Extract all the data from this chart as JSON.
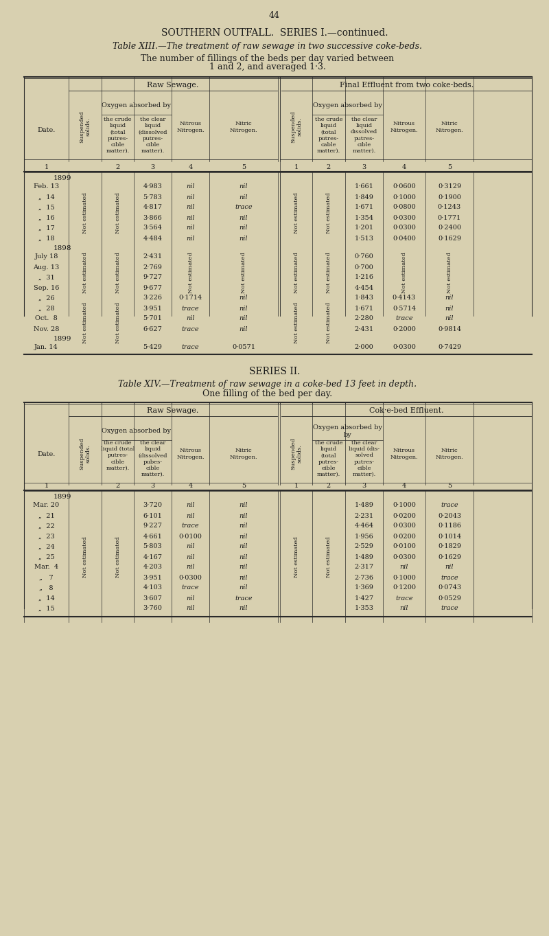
{
  "page_number": "44",
  "title1": "SOUTHERN OUTFALL.  SERIES I.—continued.",
  "table13_caption": "Table XIII.—The treatment of raw sewage in two successive coke-beds.",
  "table13_subtitle": "The number of fillings of the beds per day varied between\n1 and 2, and averaged 1·3.",
  "table13_left_header": "Raw Sewage.",
  "table13_right_header": "Final Effluent from two coke-beds.",
  "table13_col_headers": [
    "Date.",
    "Suspended solids.",
    "Oxygen absorbed by",
    "the crude liquid (total putres-\ncible matter).",
    "the clear liquid (dissolved putres-\ncible matter).",
    "Nitrous Nitrogen.",
    "Nitric Nitrogen.",
    "Suspended solids.",
    "Oxygen absorbed by",
    "the crude liquid (total putres-\ncable matter).",
    "the clear liquid dissolved putres-\ncible matter).",
    "Nitrous Nitrogen.",
    "Nitric Nitrogen."
  ],
  "table13_col_nums": [
    "",
    "1",
    "2",
    "3",
    "4",
    "5",
    "1",
    "2",
    "3",
    "4",
    "5"
  ],
  "table13_data": [
    [
      "1899",
      "",
      "",
      "",
      "",
      "",
      "",
      "",
      "",
      "",
      ""
    ],
    [
      "Feb. 13",
      "NE",
      "NE",
      "4·983",
      "nil",
      "nil",
      "NE",
      "NE",
      "1·661",
      "0·0600",
      "0·3129"
    ],
    [
      "„  14",
      "NE",
      "NE",
      "5·783",
      "nil",
      "nil",
      "NE",
      "NE",
      "1·849",
      "0·1000",
      "0·1900"
    ],
    [
      "„  15",
      "NE",
      "NE",
      "4·817",
      "nil",
      "trace",
      "NE",
      "NE",
      "1·671",
      "0·0800",
      "0·1243"
    ],
    [
      "„  16",
      "NE",
      "NE",
      "3·866",
      "nil",
      "nil",
      "NE",
      "NE",
      "1·354",
      "0·0300",
      "0·1771"
    ],
    [
      "„  17",
      "NE",
      "NE",
      "3·564",
      "nil",
      "nil",
      "NE",
      "NE",
      "1·201",
      "0·0300",
      "0·2400"
    ],
    [
      "„  18",
      "NE",
      "NE",
      "4·484",
      "nil",
      "nil",
      "NE",
      "NE",
      "1·513",
      "0·0400",
      "0·1629"
    ],
    [
      "1898",
      "",
      "",
      "",
      "",
      "",
      "",
      "",
      "",
      "",
      ""
    ],
    [
      "July 18",
      "NE",
      "NE",
      "2·431",
      "NE",
      "NE",
      "NE",
      "NE",
      "0·760",
      "NE",
      "NE"
    ],
    [
      "Aug. 13",
      "NE",
      "NE",
      "2·769",
      "NE",
      "NE",
      "NE",
      "NE",
      "0·700",
      "NE",
      "NE"
    ],
    [
      "„  31",
      "NE",
      "NE",
      "9·727",
      "NE",
      "NE",
      "NE",
      "NE",
      "1·216",
      "NE",
      "NE"
    ],
    [
      "Sep. 16",
      "NE",
      "NE",
      "9·677",
      "NE",
      "NE",
      "NE",
      "NE",
      "4·454",
      "NE",
      "NE"
    ],
    [
      "„  26",
      "NE",
      "NE",
      "3·226",
      "0·1714",
      "nil",
      "NE",
      "NE",
      "1·843",
      "0·4143",
      "nil"
    ],
    [
      "„  28",
      "NE",
      "NE",
      "3·951",
      "trace",
      "nil",
      "NE",
      "NE",
      "1·671",
      "0·5714",
      "nil"
    ],
    [
      "Oct.  8",
      "NE",
      "NE",
      "5·701",
      "nil",
      "nil",
      "NE",
      "NE",
      "2·280",
      "trace",
      "nil"
    ],
    [
      "Nov. 28",
      "NE",
      "NE",
      "6·627",
      "trace",
      "nil",
      "NE",
      "NE",
      "2·431",
      "0·2000",
      "0·9814"
    ],
    [
      "1899",
      "",
      "",
      "",
      "",
      "",
      "",
      "",
      "",
      "",
      ""
    ],
    [
      "Jan. 14",
      "NE",
      "NE",
      "5·429",
      "trace",
      "0·0571",
      "NE",
      "NE",
      "2·000",
      "0·0300",
      "0·7429"
    ]
  ],
  "series2_title": "SERIES II.",
  "table14_caption": "Table XIV.—Treatment of raw sewage in a coke-bed 13 feet in depth.",
  "table14_subtitle": "One filling of the bed per day.",
  "table14_left_header": "Raw Sewage.",
  "table14_right_header": "Cok·e-bed Effluent.",
  "table14_col_headers_left": [
    "the crude liquid (total putres-\ncible matter).",
    "the clear liquid (dissolved putres-\ncible matter).",
    "Nitrous Nitrogen.",
    "Nitric Nitrogen."
  ],
  "table14_col_nums": [
    "1",
    "2",
    "3",
    "4",
    "5",
    "1",
    "2",
    "3",
    "4",
    "5"
  ],
  "table14_data": [
    [
      "1899",
      "",
      "",
      "",
      "",
      "",
      "",
      "",
      "",
      "",
      ""
    ],
    [
      "Mar. 20",
      "NE",
      "NE",
      "3·720",
      "nil",
      "nil",
      "NE",
      "NE",
      "1·489",
      "0·1000",
      "trace"
    ],
    [
      "„  21",
      "NE",
      "NE",
      "6·101",
      "nil",
      "nil",
      "NE",
      "NE",
      "2·231",
      "0·0200",
      "0·2043"
    ],
    [
      "„  22",
      "NE",
      "NE",
      "9·227",
      "trace",
      "nil",
      "NE",
      "NE",
      "4·464",
      "0·0300",
      "0·1186"
    ],
    [
      "„  23",
      "NE",
      "NE",
      "4·661",
      "0·0100",
      "nil",
      "NE",
      "NE",
      "1·956",
      "0·0200",
      "0·1014"
    ],
    [
      "„  24",
      "NE",
      "NE",
      "5·803",
      "nil",
      "nil",
      "NE",
      "NE",
      "2·529",
      "0·0100",
      "0·1829"
    ],
    [
      "„  25",
      "NE",
      "NE",
      "4·167",
      "nil",
      "nil",
      "NE",
      "NE",
      "1·489",
      "0·0300",
      "0·1629"
    ],
    [
      "Mar.  4",
      "NE",
      "NE",
      "4·203",
      "nil",
      "nil",
      "NE",
      "NE",
      "2·317",
      "nil",
      "nil"
    ],
    [
      "„   7",
      "NE",
      "NE",
      "3·951",
      "0·0300",
      "nil",
      "NE",
      "NE",
      "2·736",
      "0·1000",
      "trace"
    ],
    [
      "„   8",
      "NE",
      "NE",
      "4·103",
      "trace",
      "nil",
      "NE",
      "NE",
      "1·369",
      "0·1200",
      "0·0743"
    ],
    [
      "„  14",
      "NE",
      "NE",
      "3·607",
      "nil",
      "trace",
      "NE",
      "NE",
      "1·427",
      "trace",
      "0·0529"
    ],
    [
      "„  15",
      "NE",
      "NE",
      "3·760",
      "nil",
      "nil",
      "NE",
      "NE",
      "1·353",
      "nil",
      "trace"
    ]
  ],
  "bg_color": "#d8d0b0",
  "text_color": "#1a1a1a",
  "line_color": "#2a2a2a"
}
